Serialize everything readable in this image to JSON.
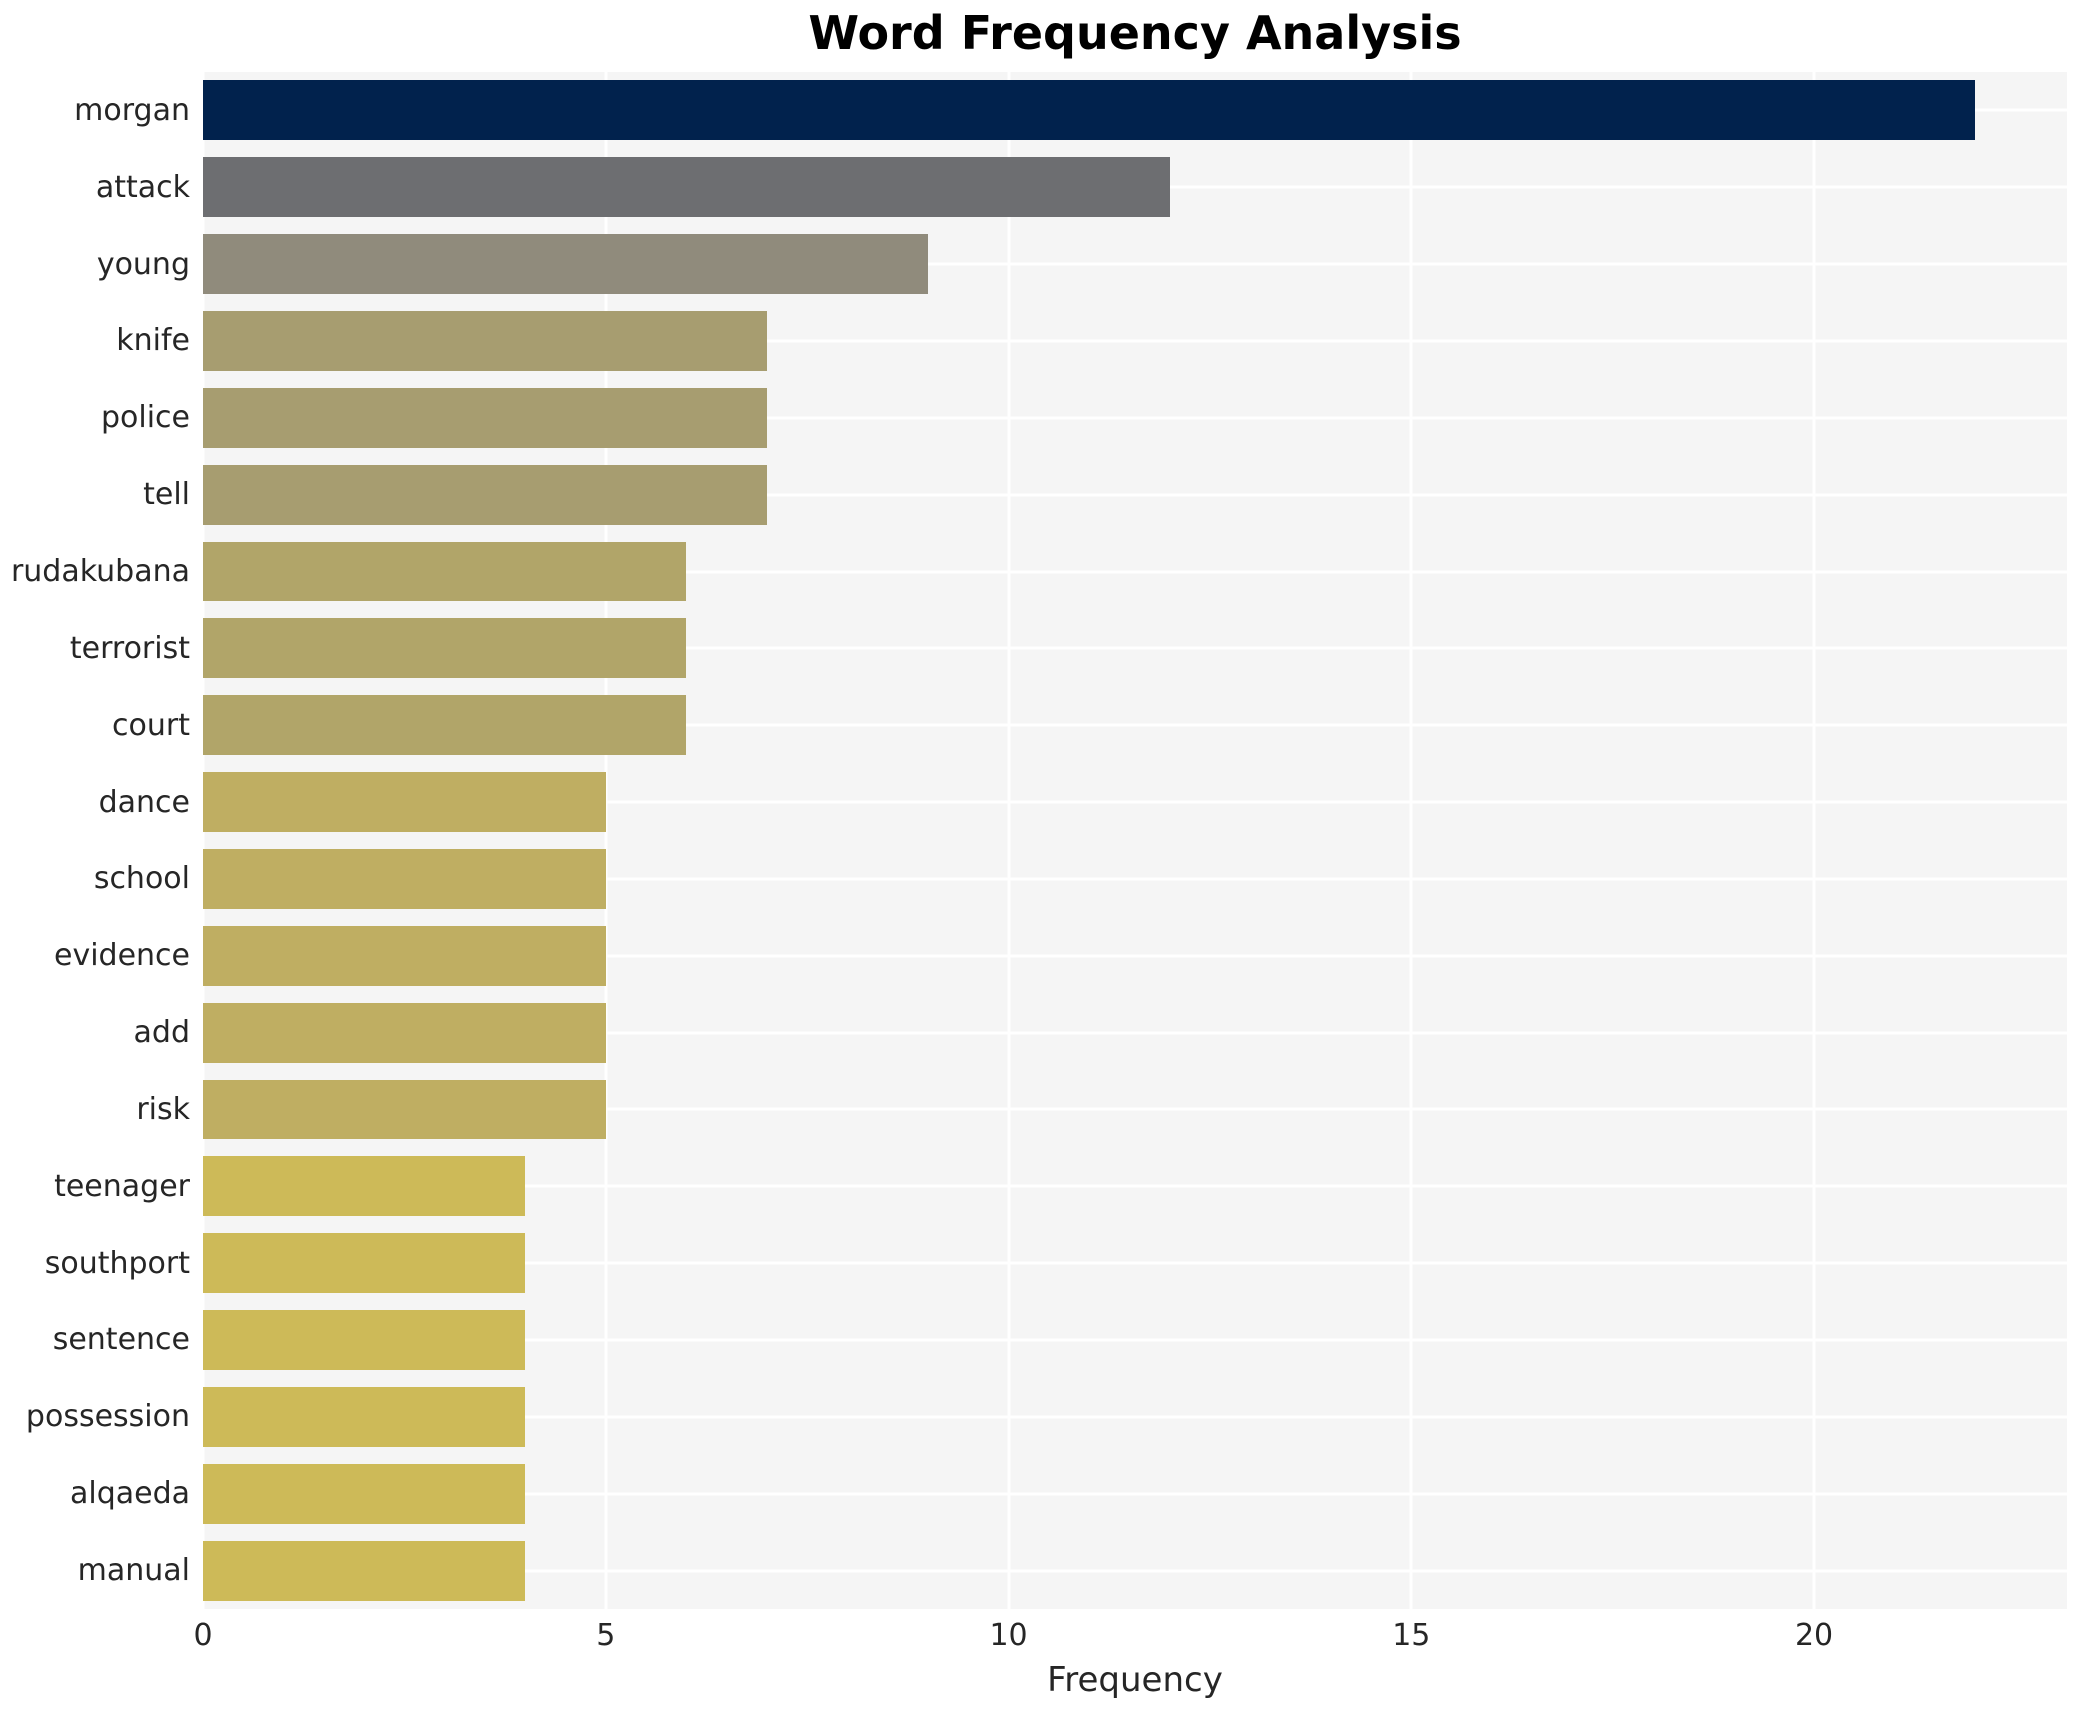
{
  "chart_data": {
    "type": "bar",
    "orientation": "horizontal",
    "title": "Word Frequency Analysis",
    "xlabel": "Frequency",
    "ylabel": "",
    "categories": [
      "morgan",
      "attack",
      "young",
      "knife",
      "police",
      "tell",
      "rudakubana",
      "terrorist",
      "court",
      "dance",
      "school",
      "evidence",
      "add",
      "risk",
      "teenager",
      "southport",
      "sentence",
      "possession",
      "alqaeda",
      "manual"
    ],
    "values": [
      22,
      12,
      9,
      7,
      7,
      7,
      6,
      6,
      6,
      5,
      5,
      5,
      5,
      5,
      4,
      4,
      4,
      4,
      4,
      4
    ],
    "bar_colors": [
      "#01224d",
      "#6d6e71",
      "#908b7c",
      "#a79d70",
      "#a79d70",
      "#a79d70",
      "#b1a569",
      "#b1a569",
      "#b1a569",
      "#bfae62",
      "#bfae62",
      "#bfae62",
      "#bfae62",
      "#bfae62",
      "#cdba58",
      "#cdba58",
      "#cdba58",
      "#cdba58",
      "#cdba58",
      "#cdba58"
    ],
    "xticks": [
      0,
      5,
      10,
      15,
      20
    ],
    "xlim": [
      0,
      23.14
    ],
    "grid": true,
    "legend_position": "none",
    "colormap": "cividis",
    "plot_background": "#f5f5f5",
    "gridline_color": "#ffffff",
    "bar_fraction": 0.78
  }
}
